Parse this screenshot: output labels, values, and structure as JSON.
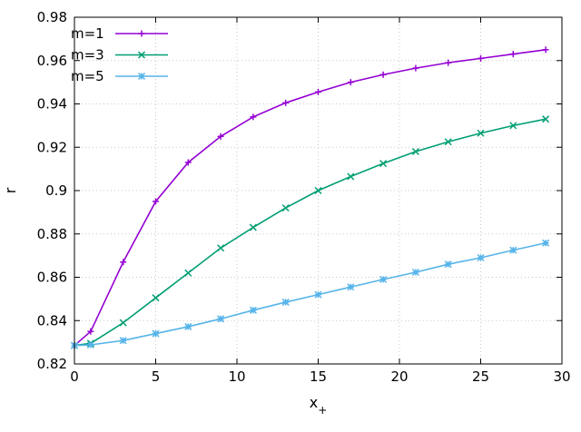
{
  "chart_data": {
    "type": "line",
    "xlabel": "x",
    "xlabel_sub": "+",
    "ylabel": "r",
    "xlim": [
      0,
      30
    ],
    "ylim": [
      0.82,
      0.98
    ],
    "xticks": [
      0,
      5,
      10,
      15,
      20,
      25,
      30
    ],
    "yticks": [
      0.82,
      0.84,
      0.86,
      0.88,
      0.9,
      0.92,
      0.94,
      0.96,
      0.98
    ],
    "xtick_labels": [
      "0",
      "5",
      "10",
      "15",
      "20",
      "25",
      "30"
    ],
    "ytick_labels": [
      "0.82",
      "0.84",
      "0.86",
      "0.88",
      "0.9",
      "0.92",
      "0.94",
      "0.96",
      "0.98"
    ],
    "grid": true,
    "legend_position": "top-left",
    "x": [
      0,
      1,
      3,
      5,
      7,
      9,
      11,
      13,
      15,
      17,
      19,
      21,
      23,
      25,
      27,
      29
    ],
    "series": [
      {
        "name": "m=1",
        "color": "#9400d3",
        "marker": "plus",
        "values": [
          0.8285,
          0.835,
          0.867,
          0.895,
          0.913,
          0.925,
          0.934,
          0.9405,
          0.9455,
          0.95,
          0.9535,
          0.9565,
          0.959,
          0.961,
          0.963,
          0.965
        ]
      },
      {
        "name": "m=3",
        "color": "#009e73",
        "marker": "cross",
        "values": [
          0.8285,
          0.8295,
          0.839,
          0.8505,
          0.862,
          0.8735,
          0.883,
          0.892,
          0.9,
          0.9065,
          0.9125,
          0.918,
          0.9225,
          0.9265,
          0.93,
          0.933
        ]
      },
      {
        "name": "m=5",
        "color": "#56b4e9",
        "marker": "star",
        "values": [
          0.8285,
          0.8288,
          0.8308,
          0.834,
          0.8372,
          0.8408,
          0.8448,
          0.8485,
          0.852,
          0.8555,
          0.859,
          0.8623,
          0.866,
          0.869,
          0.8725,
          0.8758
        ]
      }
    ]
  }
}
